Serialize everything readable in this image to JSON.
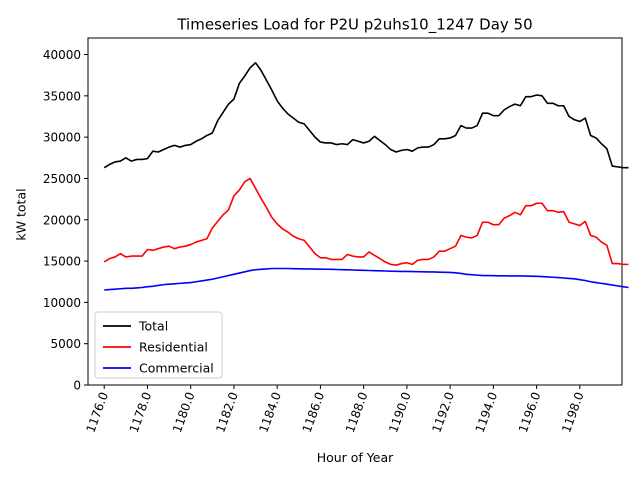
{
  "chart_data": {
    "type": "line",
    "title": "Timeseries Load for P2U p2uhs10_1247  Day 50",
    "xlabel": "Hour of Year",
    "ylabel": "kW total",
    "xlim": [
      1175.25,
      1199.95
    ],
    "ylim": [
      0,
      42000
    ],
    "x_ticks": [
      1176,
      1178,
      1180,
      1182,
      1184,
      1186,
      1188,
      1190,
      1192,
      1194,
      1196,
      1198
    ],
    "x_tick_labels": [
      "1176.0",
      "1178.0",
      "1180.0",
      "1182.0",
      "1184.0",
      "1186.0",
      "1188.0",
      "1190.0",
      "1192.0",
      "1194.0",
      "1196.0",
      "1198.0"
    ],
    "y_ticks": [
      0,
      5000,
      10000,
      15000,
      20000,
      25000,
      30000,
      35000,
      40000
    ],
    "y_tick_labels": [
      "0",
      "5000",
      "10000",
      "15000",
      "20000",
      "25000",
      "30000",
      "35000",
      "40000"
    ],
    "grid": false,
    "legend_position": "lower-left",
    "x_start": 1176.0,
    "x_step": 0.25,
    "series": [
      {
        "name": "Total",
        "color": "#000000",
        "values": [
          26300,
          26700,
          27000,
          27100,
          27500,
          27100,
          27300,
          27300,
          27400,
          28300,
          28200,
          28500,
          28800,
          29000,
          28800,
          29000,
          29100,
          29500,
          29800,
          30200,
          30500,
          32000,
          33000,
          34000,
          34600,
          36500,
          37400,
          38400,
          39000,
          38100,
          36900,
          35700,
          34400,
          33500,
          32800,
          32300,
          31800,
          31600,
          30800,
          30000,
          29400,
          29300,
          29300,
          29100,
          29200,
          29100,
          29700,
          29500,
          29300,
          29500,
          30100,
          29600,
          29100,
          28500,
          28200,
          28400,
          28500,
          28300,
          28700,
          28800,
          28800,
          29100,
          29800,
          29800,
          29900,
          30200,
          31400,
          31100,
          31100,
          31400,
          32900,
          32900,
          32600,
          32600,
          33300,
          33700,
          34000,
          33800,
          34900,
          34900,
          35100,
          35000,
          34100,
          34100,
          33800,
          33800,
          32500,
          32100,
          31900,
          32300,
          30200,
          29900,
          29200,
          28600,
          26500,
          26400,
          26300,
          26300
        ],
        "_note": ""
      },
      {
        "name": "Residential",
        "color": "#ff0000",
        "values": [
          14900,
          15300,
          15500,
          15900,
          15500,
          15600,
          15600,
          15600,
          16400,
          16300,
          16500,
          16700,
          16800,
          16500,
          16700,
          16800,
          17000,
          17300,
          17500,
          17700,
          19000,
          19800,
          20600,
          21200,
          22900,
          23600,
          24600,
          25000,
          23800,
          22600,
          21500,
          20300,
          19500,
          18900,
          18500,
          18000,
          17700,
          17500,
          16700,
          15900,
          15400,
          15400,
          15200,
          15200,
          15200,
          15800,
          15600,
          15500,
          15500,
          16100,
          15700,
          15300,
          14900,
          14600,
          14500,
          14700,
          14800,
          14600,
          15100,
          15200,
          15200,
          15500,
          16200,
          16200,
          16500,
          16800,
          18100,
          17900,
          17800,
          18100,
          19700,
          19700,
          19400,
          19400,
          20200,
          20500,
          20900,
          20600,
          21700,
          21700,
          22000,
          22000,
          21100,
          21100,
          20900,
          21000,
          19700,
          19500,
          19300,
          19800,
          18100,
          17900,
          17300,
          16900,
          14700,
          14700,
          14600,
          14600
        ]
      },
      {
        "name": "Commercial",
        "color": "#0000ff",
        "values": [
          11500,
          11550,
          11600,
          11650,
          11700,
          11700,
          11750,
          11800,
          11900,
          11950,
          12050,
          12150,
          12200,
          12250,
          12300,
          12350,
          12400,
          12500,
          12600,
          12700,
          12800,
          12950,
          13100,
          13250,
          13400,
          13550,
          13700,
          13850,
          13950,
          14000,
          14050,
          14100,
          14100,
          14100,
          14100,
          14080,
          14060,
          14050,
          14050,
          14030,
          14020,
          14010,
          14000,
          13980,
          13960,
          13940,
          13920,
          13900,
          13880,
          13860,
          13840,
          13820,
          13800,
          13780,
          13760,
          13750,
          13740,
          13730,
          13720,
          13700,
          13690,
          13680,
          13660,
          13640,
          13620,
          13580,
          13500,
          13400,
          13350,
          13300,
          13250,
          13240,
          13230,
          13220,
          13210,
          13200,
          13200,
          13200,
          13180,
          13170,
          13150,
          13120,
          13080,
          13040,
          13000,
          12950,
          12900,
          12850,
          12750,
          12650,
          12500,
          12400,
          12300,
          12200,
          12100,
          12000,
          11900,
          11800
        ]
      }
    ]
  }
}
